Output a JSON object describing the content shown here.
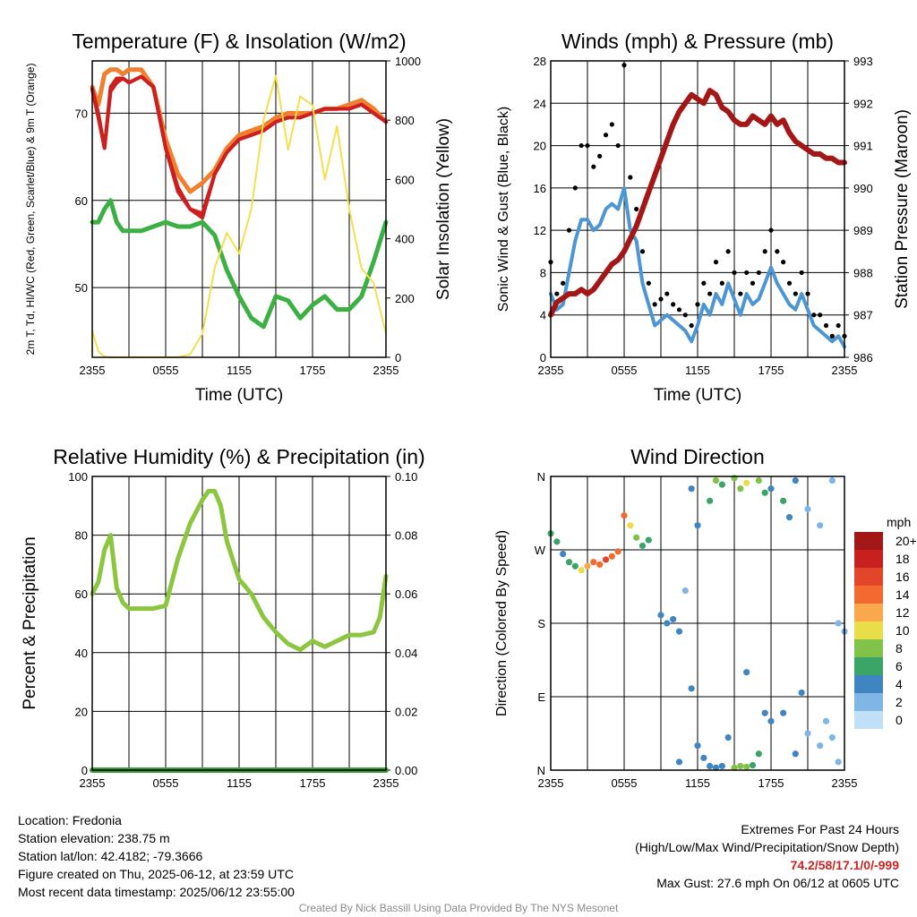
{
  "colors": {
    "temp": "#cc1f1f",
    "heat_index": "#2e8b2e",
    "temp_9m": "#f07f2e",
    "dewpoint": "#3cb043",
    "insolation": "#f5de4f",
    "wind": "#4d96d4",
    "gust": "#000000",
    "pressure": "#a31717",
    "rh": "#8cc63f",
    "precip": "#3a9a3a"
  },
  "colorbar": {
    "title": "mph",
    "labels": [
      "20+",
      "18",
      "16",
      "14",
      "12",
      "10",
      "8",
      "6",
      "4",
      "2",
      "0"
    ],
    "colors": [
      "#a31717",
      "#c8201f",
      "#e2452a",
      "#f26a2f",
      "#f9a84b",
      "#e8de4a",
      "#80c348",
      "#3aa566",
      "#3f85c2",
      "#7fb6e6",
      "#bfe0f7"
    ]
  },
  "info": {
    "location": "Location: Fredonia",
    "elevation": "Station elevation: 238.75 m",
    "latlon": "Station lat/lon: 42.4182; -79.3666",
    "created": "Figure created on Thu, 2025-06-12, at 23:59 UTC",
    "recent": "Most recent data timestamp: 2025/06/12 23:55:00"
  },
  "extremes": {
    "title": "Extremes For Past 24 Hours",
    "subtitle": "(High/Low/Max Wind/Precipitation/Snow Depth)",
    "values": "74.2/58/17.1/0/-999",
    "gust": "Max Gust: 27.6 mph On 06/12 at 0605 UTC"
  },
  "credit": "Created By Nick Bassill Using Data Provided By The NYS Mesonet",
  "chart_data": [
    {
      "type": "line",
      "title": "Temperature (F) & Insolation (W/m2)",
      "xlabel": "Time (UTC)",
      "ylabel": "2m T, Td, HI/WC (Red, Green, Scarlet/Blue) & 9m T (Orange)",
      "y2label": "Solar Insolation (Yellow)",
      "x_ticks": [
        "2355",
        "0555",
        "1155",
        "1755",
        "2355"
      ],
      "ylim": [
        42,
        76
      ],
      "y_ticks": [
        50,
        60,
        70
      ],
      "y2lim": [
        0,
        1000
      ],
      "y2_ticks": [
        0,
        200,
        400,
        600,
        800,
        1000
      ],
      "x": [
        0,
        0.5,
        1,
        1.5,
        2,
        2.5,
        3,
        4,
        5,
        6,
        7,
        8,
        9,
        10,
        11,
        12,
        13,
        14,
        15,
        16,
        17,
        18,
        19,
        20,
        21,
        22,
        23,
        24
      ],
      "series": [
        {
          "key": "t9",
          "axis": "y",
          "values": [
            73.0,
            71.0,
            74.5,
            75.0,
            75.0,
            74.5,
            75.0,
            75.0,
            73.0,
            67.0,
            63.0,
            61.0,
            62.0,
            63.5,
            66.0,
            67.5,
            68.0,
            68.5,
            69.5,
            70.0,
            70.0,
            70.0,
            70.5,
            70.5,
            71.0,
            71.5,
            70.5,
            69.0
          ]
        },
        {
          "key": "hi",
          "axis": "y",
          "values": [
            72.8,
            70.0,
            66.0,
            73.0,
            74.0,
            74.0,
            73.5,
            74.2,
            73.0,
            66.0,
            61.5,
            59.0,
            58.5,
            63.0,
            65.5,
            67.0,
            67.5,
            68.0,
            69.0,
            69.5,
            69.5,
            70.0,
            70.5,
            70.5,
            70.5,
            71.0,
            70.0,
            69.0
          ]
        },
        {
          "key": "t",
          "axis": "y",
          "values": [
            72.7,
            69.5,
            66.0,
            72.5,
            73.5,
            74.0,
            73.5,
            74.2,
            73.0,
            66.0,
            61.0,
            59.0,
            58.0,
            63.0,
            65.5,
            67.0,
            67.5,
            68.0,
            69.0,
            69.5,
            69.5,
            70.0,
            70.5,
            70.5,
            70.5,
            71.0,
            70.0,
            69.0
          ]
        },
        {
          "key": "td",
          "axis": "y",
          "values": [
            57.5,
            57.5,
            59.0,
            60.0,
            57.5,
            56.5,
            56.5,
            56.5,
            57.0,
            57.5,
            57.0,
            57.0,
            57.5,
            56.0,
            52.0,
            49.0,
            46.5,
            45.5,
            49.0,
            48.5,
            46.5,
            48.0,
            49.0,
            47.5,
            47.5,
            49.0,
            53.0,
            57.5
          ]
        },
        {
          "key": "sol",
          "axis": "y2",
          "values": [
            90,
            20,
            2,
            0,
            0,
            0,
            0,
            0,
            0,
            0,
            0,
            10,
            80,
            300,
            420,
            350,
            500,
            800,
            950,
            700,
            880,
            850,
            600,
            780,
            500,
            300,
            250,
            80
          ]
        }
      ]
    },
    {
      "type": "line",
      "title": "Winds (mph) & Pressure (mb)",
      "xlabel": "Time (UTC)",
      "ylabel": "Sonic Wind & Gust (Blue, Black)",
      "y2label": "Station Pressure (Maroon)",
      "x_ticks": [
        "2355",
        "0555",
        "1155",
        "1755",
        "2355"
      ],
      "ylim": [
        0,
        28
      ],
      "y_ticks": [
        0,
        4,
        8,
        12,
        16,
        20,
        24,
        28
      ],
      "y2lim": [
        986,
        993
      ],
      "y2_ticks": [
        986,
        987,
        988,
        989,
        990,
        991,
        992,
        993
      ],
      "x": [
        0,
        0.5,
        1,
        1.5,
        2,
        2.5,
        3,
        3.5,
        4,
        4.5,
        5,
        5.5,
        6,
        6.5,
        7,
        7.5,
        8,
        8.5,
        9,
        9.5,
        10,
        10.5,
        11,
        11.5,
        12,
        12.5,
        13,
        13.5,
        14,
        14.5,
        15,
        15.5,
        16,
        16.5,
        17,
        17.5,
        18,
        18.5,
        19,
        19.5,
        20,
        20.5,
        21,
        21.5,
        22,
        22.5,
        23,
        23.5,
        24
      ],
      "series": [
        {
          "key": "wind",
          "axis": "y",
          "values": [
            6,
            4.5,
            5,
            8,
            11,
            13,
            13,
            12,
            12.5,
            14,
            14.5,
            14,
            16,
            12,
            11,
            7,
            5,
            3,
            3.5,
            4,
            3.5,
            3,
            2.5,
            1.5,
            3,
            5,
            4,
            6,
            5,
            7,
            5.5,
            4,
            6,
            5,
            5.5,
            7,
            8.5,
            7,
            6,
            5,
            4.5,
            6,
            4.5,
            3,
            2.5,
            2,
            1.5,
            2,
            1
          ]
        },
        {
          "key": "pres",
          "axis": "y2",
          "values": [
            987.0,
            987.3,
            987.4,
            987.5,
            987.5,
            987.6,
            987.5,
            987.6,
            987.8,
            988.0,
            988.2,
            988.3,
            988.5,
            988.8,
            989.1,
            989.5,
            989.9,
            990.3,
            990.7,
            991.1,
            991.5,
            991.8,
            992.0,
            992.2,
            992.1,
            992.0,
            992.3,
            992.2,
            991.9,
            991.8,
            991.6,
            991.5,
            991.5,
            991.7,
            991.6,
            991.5,
            991.7,
            991.5,
            991.6,
            991.3,
            991.1,
            991.0,
            990.9,
            990.8,
            990.8,
            990.7,
            990.7,
            990.6,
            990.6
          ]
        },
        {
          "key": "gust",
          "axis": "y",
          "values": [
            9,
            6,
            7,
            12,
            16,
            20,
            20,
            18,
            19,
            21,
            22,
            20,
            27.6,
            17,
            14,
            10,
            7,
            5,
            5.5,
            6,
            5,
            4.5,
            4,
            3,
            5,
            7,
            6,
            9,
            7,
            10,
            8,
            6,
            8,
            7,
            8,
            10,
            12,
            10,
            9,
            7,
            6,
            8,
            6,
            4,
            4,
            3,
            2,
            3,
            2
          ]
        }
      ]
    },
    {
      "type": "line",
      "title": "Relative Humidity (%) & Precipitation (in)",
      "xlabel": "",
      "ylabel": "Percent & Precipitation",
      "x_ticks": [
        "2355",
        "0555",
        "1155",
        "1755",
        "2355"
      ],
      "ylim": [
        0,
        100
      ],
      "y_ticks": [
        0,
        20,
        40,
        60,
        80,
        100
      ],
      "y2lim": [
        0,
        0.1
      ],
      "y2_ticks": [
        "0.00",
        "0.02",
        "0.04",
        "0.06",
        "0.08",
        "0.10"
      ],
      "x": [
        0,
        0.5,
        1,
        1.5,
        2,
        2.5,
        3,
        4,
        5,
        6,
        7,
        8,
        9,
        9.5,
        10,
        10.5,
        11,
        12,
        13,
        14,
        15,
        16,
        17,
        18,
        19,
        20,
        21,
        22,
        23,
        23.5,
        24
      ],
      "series": [
        {
          "key": "rh",
          "axis": "y",
          "values": [
            60,
            64,
            75,
            80,
            62,
            57,
            55,
            55,
            55,
            56,
            72,
            84,
            92,
            95,
            95,
            90,
            78,
            65,
            60,
            52,
            47,
            43,
            41,
            44,
            42,
            44,
            46,
            46,
            47,
            52,
            66
          ]
        },
        {
          "key": "precip",
          "axis": "y2",
          "values": [
            0,
            0,
            0,
            0,
            0,
            0,
            0,
            0,
            0,
            0,
            0,
            0,
            0,
            0,
            0,
            0,
            0,
            0,
            0,
            0,
            0,
            0,
            0,
            0,
            0,
            0,
            0,
            0,
            0,
            0,
            0
          ]
        }
      ]
    },
    {
      "type": "scatter",
      "title": "Wind Direction",
      "xlabel": "",
      "ylabel": "Direction (Colored By Speed)",
      "x_ticks": [
        "2355",
        "0555",
        "1155",
        "1755",
        "2355"
      ],
      "ylim": [
        0,
        360
      ],
      "y_ticks": [
        "N",
        "E",
        "S",
        "W",
        "N"
      ],
      "points": [
        [
          0,
          290,
          5
        ],
        [
          0.5,
          280,
          5
        ],
        [
          1,
          265,
          4
        ],
        [
          1.5,
          255,
          5
        ],
        [
          2,
          250,
          6
        ],
        [
          2.5,
          245,
          10
        ],
        [
          3,
          250,
          12
        ],
        [
          3.5,
          255,
          13
        ],
        [
          4,
          252,
          14
        ],
        [
          4.5,
          258,
          15
        ],
        [
          5,
          262,
          14
        ],
        [
          5.5,
          268,
          13
        ],
        [
          6,
          312,
          13
        ],
        [
          6.5,
          300,
          10
        ],
        [
          7,
          285,
          7
        ],
        [
          7.5,
          275,
          6
        ],
        [
          8,
          282,
          5
        ],
        [
          9,
          190,
          4
        ],
        [
          9.5,
          180,
          3
        ],
        [
          10,
          185,
          4
        ],
        [
          10.5,
          170,
          3
        ],
        [
          11,
          220,
          2
        ],
        [
          11.5,
          345,
          4
        ],
        [
          12,
          300,
          4
        ],
        [
          13,
          330,
          5
        ],
        [
          13.5,
          355,
          7
        ],
        [
          14,
          350,
          6
        ],
        [
          15,
          358,
          8
        ],
        [
          15.5,
          345,
          7
        ],
        [
          16,
          352,
          9
        ],
        [
          17,
          355,
          7
        ],
        [
          17.5,
          340,
          5
        ],
        [
          18,
          345,
          4
        ],
        [
          19,
          330,
          5
        ],
        [
          19.5,
          310,
          3
        ],
        [
          20,
          355,
          4
        ],
        [
          21,
          320,
          2
        ],
        [
          22,
          300,
          2
        ],
        [
          23,
          355,
          1
        ],
        [
          23.5,
          180,
          2
        ],
        [
          24,
          170,
          2
        ],
        [
          11.5,
          100,
          3
        ],
        [
          12,
          30,
          3
        ],
        [
          12.5,
          15,
          4
        ],
        [
          13,
          5,
          4
        ],
        [
          13.5,
          3,
          4
        ],
        [
          14,
          5,
          3
        ],
        [
          14.5,
          40,
          4
        ],
        [
          15,
          3,
          7
        ],
        [
          15.5,
          5,
          8
        ],
        [
          16,
          4,
          7
        ],
        [
          16.5,
          6,
          6
        ],
        [
          17,
          20,
          5
        ],
        [
          17.5,
          70,
          4
        ],
        [
          18,
          60,
          3
        ],
        [
          19,
          70,
          4
        ],
        [
          20,
          20,
          4
        ],
        [
          20.5,
          95,
          3
        ],
        [
          21,
          45,
          2
        ],
        [
          22,
          30,
          2
        ],
        [
          22.5,
          60,
          2
        ],
        [
          23,
          40,
          1
        ],
        [
          23.5,
          10,
          1
        ],
        [
          10.5,
          10,
          3
        ],
        [
          16,
          120,
          4
        ]
      ]
    }
  ]
}
